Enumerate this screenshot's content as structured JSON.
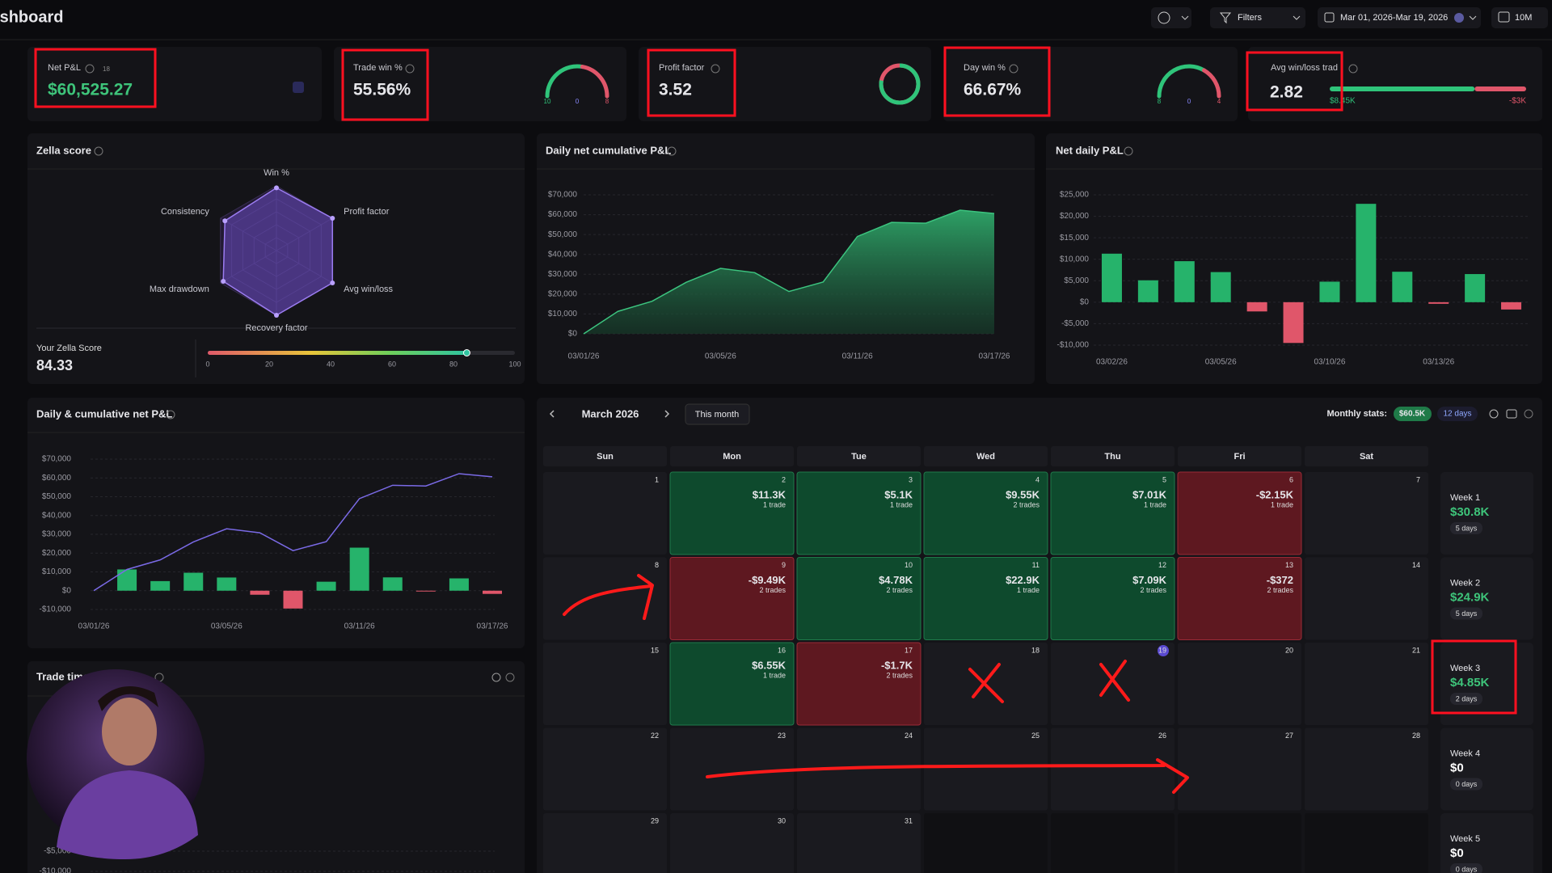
{
  "header": {
    "title": "Dashboard",
    "filters": "Filters",
    "date_range": "Mar 01, 2026-Mar 19, 2026",
    "account": "10M"
  },
  "stats": {
    "net_pnl": {
      "label": "Net P&L",
      "badge": "18",
      "value": "$60,525.27"
    },
    "trade_win": {
      "label": "Trade win %",
      "value": "55.56%",
      "wins": 10,
      "neutral": 0,
      "losses": 8
    },
    "profit_factor": {
      "label": "Profit factor",
      "value": 3.52
    },
    "day_win": {
      "label": "Day win %",
      "value": "66.67%",
      "wins": 8,
      "neutral": 0,
      "losses": 4
    },
    "avg_win_loss": {
      "label": "Avg win/loss trade",
      "value": 2.82,
      "values": [
        8450,
        -3000
      ],
      "value_labels": [
        "$8.45K",
        "-$3K"
      ]
    }
  },
  "zella": {
    "title": "Zella score",
    "axes": [
      "Win %",
      "Profit factor",
      "Avg win/loss",
      "Recovery factor",
      "Max drawdown",
      "Consistency"
    ],
    "values": [
      97,
      100,
      100,
      100,
      95,
      92
    ],
    "score_label": "Your Zella Score",
    "score": 84.33,
    "scale_ticks": [
      0,
      20,
      40,
      60,
      80,
      100
    ]
  },
  "cumulative": {
    "title": "Daily net cumulative P&L",
    "categories": [
      "03/01/26",
      null,
      null,
      null,
      "03/05/26",
      null,
      null,
      null,
      "03/11/26",
      null,
      null,
      null,
      "03/17/26"
    ],
    "values": [
      0,
      11300,
      16400,
      25950,
      32960,
      30810,
      21320,
      26100,
      49000,
      56090,
      55718,
      62268,
      60568
    ],
    "ylim": [
      0,
      70000
    ],
    "yticks": [
      {
        "value": 0,
        "label": "$0"
      },
      {
        "value": 10000,
        "label": "$10,000"
      },
      {
        "value": 20000,
        "label": "$20,000"
      },
      {
        "value": 30000,
        "label": "$30,000"
      },
      {
        "value": 40000,
        "label": "$40,000"
      },
      {
        "value": 50000,
        "label": "$50,000"
      },
      {
        "value": 60000,
        "label": "$60,000"
      },
      {
        "value": 70000,
        "label": "$70,000"
      }
    ]
  },
  "net_daily": {
    "title": "Net daily P&L",
    "categories": [
      "03/02/26",
      null,
      null,
      "03/05/26",
      null,
      null,
      "03/10/26",
      null,
      null,
      "03/13/26",
      null,
      null
    ],
    "values": [
      11300,
      5100,
      9550,
      7010,
      -2150,
      -9490,
      4780,
      22900,
      7090,
      -372,
      6550,
      -1700
    ],
    "ylim": [
      -10000,
      25000
    ],
    "yticks": [
      {
        "value": -10000,
        "label": "-$10,000"
      },
      {
        "value": -5000,
        "label": "-$5,000"
      },
      {
        "value": 0,
        "label": "$0"
      },
      {
        "value": 5000,
        "label": "$5,000"
      },
      {
        "value": 10000,
        "label": "$10,000"
      },
      {
        "value": 15000,
        "label": "$15,000"
      },
      {
        "value": 20000,
        "label": "$20,000"
      },
      {
        "value": 25000,
        "label": "$25,000"
      }
    ]
  },
  "daily_cumulative": {
    "title": "Daily & cumulative net P&L",
    "ylim": [
      -10000,
      70000
    ],
    "yticks": [
      {
        "value": -10000,
        "label": "-$10,000"
      },
      {
        "value": 0,
        "label": "$0"
      },
      {
        "value": 10000,
        "label": "$10,000"
      },
      {
        "value": 20000,
        "label": "$20,000"
      },
      {
        "value": 30000,
        "label": "$30,000"
      },
      {
        "value": 40000,
        "label": "$40,000"
      },
      {
        "value": 50000,
        "label": "$50,000"
      },
      {
        "value": 60000,
        "label": "$60,000"
      },
      {
        "value": 70000,
        "label": "$70,000"
      }
    ]
  },
  "trade_time": {
    "title": "Trade time",
    "ylim": [
      -10000,
      30000
    ],
    "yticks": [
      {
        "value": -5000,
        "label": "-$5,000"
      },
      {
        "value": -10000,
        "label": "-$10,000"
      }
    ]
  },
  "calendar": {
    "month": "March 2026",
    "this_month": "This month",
    "monthly_stats_label": "Monthly stats:",
    "monthly_pnl": "$60.5K",
    "monthly_days": "12 days",
    "weekdays": [
      "Sun",
      "Mon",
      "Tue",
      "Wed",
      "Thu",
      "Fri",
      "Sat"
    ],
    "days": [
      {
        "day": 1
      },
      {
        "day": 2,
        "pnl": "$11.3K",
        "trades": "1 trade"
      },
      {
        "day": 3,
        "pnl": "$5.1K",
        "trades": "1 trade"
      },
      {
        "day": 4,
        "pnl": "$9.55K",
        "trades": "2 trades"
      },
      {
        "day": 5,
        "pnl": "$7.01K",
        "trades": "1 trade"
      },
      {
        "day": 6,
        "pnl": "-$2.15K",
        "trades": "1 trade"
      },
      {
        "day": 7
      },
      {
        "day": 8
      },
      {
        "day": 9,
        "pnl": "-$9.49K",
        "trades": "2 trades"
      },
      {
        "day": 10,
        "pnl": "$4.78K",
        "trades": "2 trades"
      },
      {
        "day": 11,
        "pnl": "$22.9K",
        "trades": "1 trade"
      },
      {
        "day": 12,
        "pnl": "$7.09K",
        "trades": "2 trades"
      },
      {
        "day": 13,
        "pnl": "-$372",
        "trades": "2 trades"
      },
      {
        "day": 14
      },
      {
        "day": 15
      },
      {
        "day": 16,
        "pnl": "$6.55K",
        "trades": "1 trade"
      },
      {
        "day": 17,
        "pnl": "-$1.7K",
        "trades": "2 trades"
      },
      {
        "day": 18
      },
      {
        "day": 19,
        "today": true
      },
      {
        "day": 20
      },
      {
        "day": 21
      },
      {
        "day": 22
      },
      {
        "day": 23
      },
      {
        "day": 24
      },
      {
        "day": 25
      },
      {
        "day": 26
      },
      {
        "day": 27
      },
      {
        "day": 28
      },
      {
        "day": 29
      },
      {
        "day": 30
      },
      {
        "day": 31
      }
    ],
    "weeks": [
      {
        "label": "Week 1",
        "pnl": "$30.8K",
        "days": "5 days",
        "color": "#3ec47a"
      },
      {
        "label": "Week 2",
        "pnl": "$24.9K",
        "days": "5 days",
        "color": "#3ec47a"
      },
      {
        "label": "Week 3",
        "pnl": "$4.85K",
        "days": "2 days",
        "color": "#3ec47a"
      },
      {
        "label": "Week 4",
        "pnl": "$0",
        "days": "0 days",
        "color": "#ffffff"
      },
      {
        "label": "Week 5",
        "pnl": "$0",
        "days": "0 days",
        "color": "#ffffff"
      }
    ]
  }
}
